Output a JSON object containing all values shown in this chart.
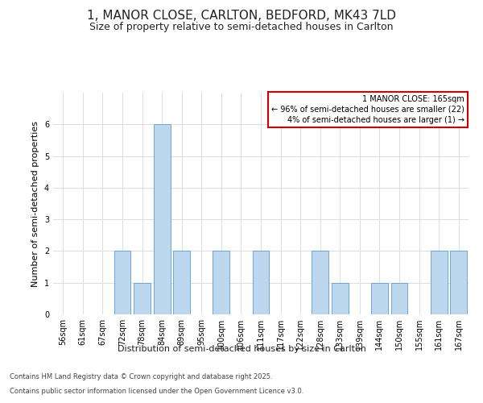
{
  "title": "1, MANOR CLOSE, CARLTON, BEDFORD, MK43 7LD",
  "subtitle": "Size of property relative to semi-detached houses in Carlton",
  "xlabel": "Distribution of semi-detached houses by size in Carlton",
  "ylabel": "Number of semi-detached properties",
  "categories": [
    "56sqm",
    "61sqm",
    "67sqm",
    "72sqm",
    "78sqm",
    "84sqm",
    "89sqm",
    "95sqm",
    "100sqm",
    "106sqm",
    "111sqm",
    "117sqm",
    "122sqm",
    "128sqm",
    "133sqm",
    "139sqm",
    "144sqm",
    "150sqm",
    "155sqm",
    "161sqm",
    "167sqm"
  ],
  "values": [
    0,
    0,
    0,
    2,
    1,
    6,
    2,
    0,
    2,
    0,
    2,
    0,
    0,
    2,
    1,
    0,
    1,
    1,
    0,
    2,
    2
  ],
  "bar_color": "#bdd7ee",
  "bar_edge_color": "#5b9bd5",
  "legend_title": "1 MANOR CLOSE: 165sqm",
  "legend_line1": "← 96% of semi-detached houses are smaller (22)",
  "legend_line2": "4% of semi-detached houses are larger (1) →",
  "legend_box_color": "#ffffff",
  "legend_box_edge": "#cc0000",
  "ylim": [
    0,
    7
  ],
  "yticks": [
    0,
    1,
    2,
    3,
    4,
    5,
    6
  ],
  "footer1": "Contains HM Land Registry data © Crown copyright and database right 2025.",
  "footer2": "Contains public sector information licensed under the Open Government Licence v3.0.",
  "bg_color": "#ffffff",
  "grid_color": "#dddddd",
  "title_fontsize": 11,
  "subtitle_fontsize": 9,
  "axis_label_fontsize": 8,
  "tick_fontsize": 7,
  "footer_fontsize": 6,
  "legend_fontsize": 7
}
